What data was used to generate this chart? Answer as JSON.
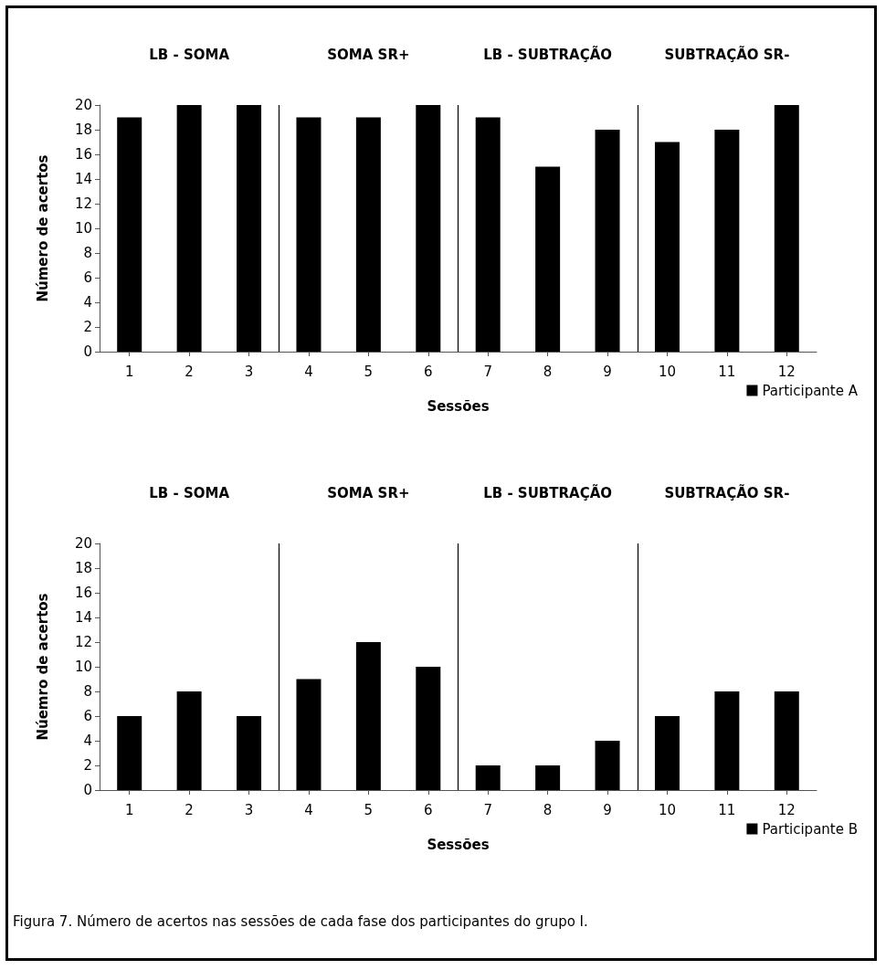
{
  "chart_data": [
    {
      "type": "bar",
      "x": [
        1,
        2,
        3,
        4,
        5,
        6,
        7,
        8,
        9,
        10,
        11,
        12
      ],
      "xlim": [
        0.5,
        12.5
      ],
      "xticks": [
        1,
        2,
        3,
        4,
        5,
        6,
        7,
        8,
        9,
        10,
        11,
        12
      ],
      "ylim": [
        0,
        20
      ],
      "yticks": [
        0,
        2,
        4,
        6,
        8,
        10,
        12,
        14,
        16,
        18,
        20
      ],
      "xlabel": "Sessões",
      "ylabel": "Número de acertos",
      "series": [
        {
          "name": "Participante A",
          "color": "#000000",
          "values": [
            19,
            20,
            20,
            19,
            19,
            20,
            19,
            15,
            18,
            17,
            18,
            20
          ]
        }
      ],
      "ref_lines": [
        {
          "axis": "x",
          "value": 3.5,
          "color": "#000000"
        },
        {
          "axis": "x",
          "value": 6.5,
          "color": "#000000"
        },
        {
          "axis": "x",
          "value": 9.5,
          "color": "#000000"
        }
      ],
      "annotations": [
        "LB - SOMA",
        "SOMA SR+",
        "LB - SUBTRAÇÃO",
        "SUBTRAÇÃO SR-"
      ],
      "legend": "bottom right",
      "grid": false
    },
    {
      "type": "bar",
      "x": [
        1,
        2,
        3,
        4,
        5,
        6,
        7,
        8,
        9,
        10,
        11,
        12
      ],
      "xlim": [
        0.5,
        12.5
      ],
      "xticks": [
        1,
        2,
        3,
        4,
        5,
        6,
        7,
        8,
        9,
        10,
        11,
        12
      ],
      "ylim": [
        0,
        20
      ],
      "yticks": [
        0,
        2,
        4,
        6,
        8,
        10,
        12,
        14,
        16,
        18,
        20
      ],
      "xlabel": "Sessões",
      "ylabel": "Núemro de acertos",
      "series": [
        {
          "name": "Participante B",
          "color": "#000000",
          "values": [
            6,
            8,
            6,
            9,
            12,
            10,
            2,
            2,
            4,
            6,
            8,
            8
          ]
        }
      ],
      "ref_lines": [
        {
          "axis": "x",
          "value": 3.5,
          "color": "#000000"
        },
        {
          "axis": "x",
          "value": 6.5,
          "color": "#000000"
        },
        {
          "axis": "x",
          "value": 9.5,
          "color": "#000000"
        }
      ],
      "annotations": [
        "LB - SOMA",
        "SOMA SR+",
        "LB - SUBTRAÇÃO",
        "SUBTRAÇÃO SR-",
        "Figura 7. Número de acertos nas sessões de cada fase dos participantes do grupo I."
      ],
      "legend": "bottom right",
      "grid": false
    }
  ]
}
